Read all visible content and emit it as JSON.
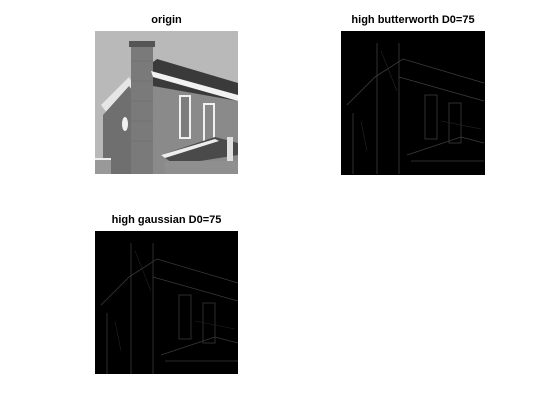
{
  "figure": {
    "background": "#ffffff",
    "panels": [
      {
        "id": "origin",
        "title": "origin",
        "kind": "grayscale-photo"
      },
      {
        "id": "butterworth",
        "title": "high butterworth D0=75",
        "kind": "highpass-edges"
      },
      {
        "id": "gaussian",
        "title": "high gaussian D0=75",
        "kind": "highpass-edges"
      }
    ]
  }
}
